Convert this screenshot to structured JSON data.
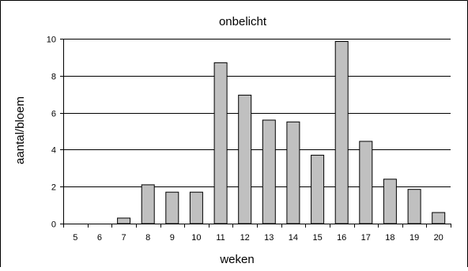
{
  "chart_data": {
    "type": "bar",
    "title": "onbelicht",
    "xlabel": "weken",
    "ylabel": "aantal/bloem",
    "categories": [
      "5",
      "6",
      "7",
      "8",
      "9",
      "10",
      "11",
      "12",
      "13",
      "14",
      "15",
      "16",
      "17",
      "18",
      "19",
      "20"
    ],
    "values": [
      0,
      0,
      0.3,
      2.1,
      1.7,
      1.7,
      8.7,
      6.95,
      5.6,
      5.5,
      3.7,
      9.85,
      4.45,
      2.4,
      1.85,
      0.6
    ],
    "ylim": [
      0,
      10
    ],
    "yticks": [
      "0",
      "2",
      "4",
      "6",
      "8",
      "10"
    ],
    "grid": true,
    "legend": "none",
    "colors": {
      "bar_fill": "#c0c0c0",
      "bar_stroke": "#000000",
      "gridline": "#000000",
      "frame": "#000000"
    }
  }
}
